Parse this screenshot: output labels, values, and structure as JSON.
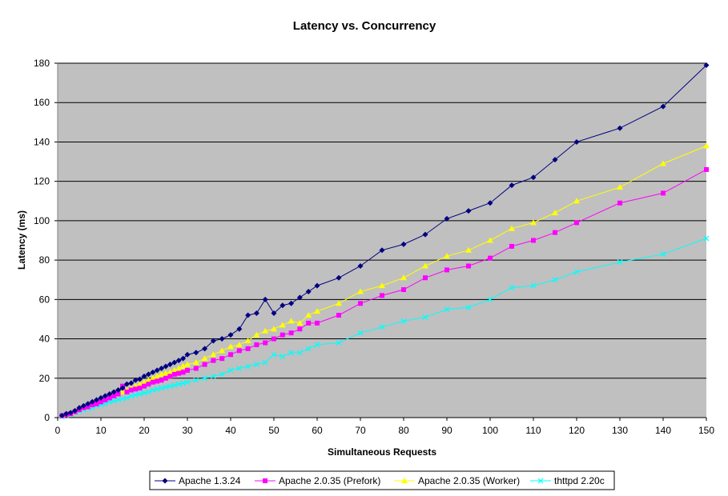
{
  "chart_data": {
    "type": "line",
    "title": "Latency vs. Concurrency",
    "xlabel": "Simultaneous Requests",
    "ylabel": "Latency (ms)",
    "xlim": [
      0,
      150
    ],
    "ylim": [
      0,
      180
    ],
    "xticks": [
      "0",
      "10",
      "20",
      "30",
      "40",
      "50",
      "60",
      "70",
      "80",
      "90",
      "100",
      "110",
      "120",
      "130",
      "140",
      "150"
    ],
    "yticks": [
      "0",
      "20",
      "40",
      "60",
      "80",
      "100",
      "120",
      "140",
      "160",
      "180"
    ],
    "grid": "horizontal",
    "plot_background": "#C0C0C0",
    "legend_position": "bottom",
    "series": [
      {
        "name": "Apache 1.3.24",
        "color": "#000080",
        "marker": "diamond",
        "points": [
          [
            1,
            1
          ],
          [
            2,
            2
          ],
          [
            3,
            2.5
          ],
          [
            4,
            3.5
          ],
          [
            5,
            5
          ],
          [
            6,
            6
          ],
          [
            7,
            7
          ],
          [
            8,
            8
          ],
          [
            9,
            9
          ],
          [
            10,
            10
          ],
          [
            11,
            11
          ],
          [
            12,
            12
          ],
          [
            13,
            13
          ],
          [
            14,
            14
          ],
          [
            15,
            15
          ],
          [
            16,
            17
          ],
          [
            17,
            17.5
          ],
          [
            18,
            19
          ],
          [
            19,
            19.5
          ],
          [
            20,
            21
          ],
          [
            21,
            22
          ],
          [
            22,
            23
          ],
          [
            23,
            24
          ],
          [
            24,
            25
          ],
          [
            25,
            26
          ],
          [
            26,
            27
          ],
          [
            27,
            28
          ],
          [
            28,
            29
          ],
          [
            29,
            30
          ],
          [
            30,
            32
          ],
          [
            32,
            33
          ],
          [
            34,
            35
          ],
          [
            36,
            39
          ],
          [
            38,
            40
          ],
          [
            40,
            42
          ],
          [
            42,
            45
          ],
          [
            44,
            52
          ],
          [
            46,
            53
          ],
          [
            48,
            60
          ],
          [
            50,
            53
          ],
          [
            52,
            57
          ],
          [
            54,
            58
          ],
          [
            56,
            61
          ],
          [
            58,
            64
          ],
          [
            60,
            67
          ],
          [
            65,
            71
          ],
          [
            70,
            77
          ],
          [
            75,
            85
          ],
          [
            80,
            88
          ],
          [
            85,
            93
          ],
          [
            90,
            101
          ],
          [
            95,
            105
          ],
          [
            100,
            109
          ],
          [
            105,
            118
          ],
          [
            110,
            122
          ],
          [
            115,
            131
          ],
          [
            120,
            140
          ],
          [
            130,
            147
          ],
          [
            140,
            158
          ],
          [
            150,
            179
          ]
        ]
      },
      {
        "name": "Apache 2.0.35 (Prefork)",
        "color": "#FF00FF",
        "marker": "square",
        "points": [
          [
            1,
            1
          ],
          [
            2,
            1.5
          ],
          [
            3,
            2
          ],
          [
            4,
            3
          ],
          [
            5,
            4
          ],
          [
            6,
            5
          ],
          [
            7,
            5.5
          ],
          [
            8,
            6.5
          ],
          [
            9,
            7
          ],
          [
            10,
            8
          ],
          [
            11,
            9
          ],
          [
            12,
            10
          ],
          [
            13,
            11
          ],
          [
            14,
            12
          ],
          [
            15,
            16
          ],
          [
            16,
            13
          ],
          [
            17,
            14
          ],
          [
            18,
            14.5
          ],
          [
            19,
            15
          ],
          [
            20,
            16
          ],
          [
            21,
            17
          ],
          [
            22,
            18
          ],
          [
            23,
            18.5
          ],
          [
            24,
            19
          ],
          [
            25,
            20
          ],
          [
            26,
            21
          ],
          [
            27,
            22
          ],
          [
            28,
            22.5
          ],
          [
            29,
            23
          ],
          [
            30,
            24
          ],
          [
            32,
            25
          ],
          [
            34,
            27
          ],
          [
            36,
            29
          ],
          [
            38,
            30
          ],
          [
            40,
            32
          ],
          [
            42,
            34
          ],
          [
            44,
            35
          ],
          [
            46,
            37
          ],
          [
            48,
            38
          ],
          [
            50,
            40
          ],
          [
            52,
            42
          ],
          [
            54,
            43
          ],
          [
            56,
            45
          ],
          [
            58,
            48
          ],
          [
            60,
            48
          ],
          [
            65,
            52
          ],
          [
            70,
            58
          ],
          [
            75,
            62
          ],
          [
            80,
            65
          ],
          [
            85,
            71
          ],
          [
            90,
            75
          ],
          [
            95,
            77
          ],
          [
            100,
            81
          ],
          [
            105,
            87
          ],
          [
            110,
            90
          ],
          [
            115,
            94
          ],
          [
            120,
            99
          ],
          [
            130,
            109
          ],
          [
            140,
            114
          ],
          [
            150,
            126
          ]
        ]
      },
      {
        "name": "Apache 2.0.35 (Worker)",
        "color": "#FFFF00",
        "marker": "triangle",
        "points": [
          [
            1,
            1
          ],
          [
            2,
            1.5
          ],
          [
            3,
            2.5
          ],
          [
            4,
            3.5
          ],
          [
            5,
            4.5
          ],
          [
            6,
            5
          ],
          [
            7,
            6
          ],
          [
            8,
            7
          ],
          [
            9,
            8
          ],
          [
            10,
            9
          ],
          [
            11,
            10
          ],
          [
            12,
            11
          ],
          [
            13,
            12
          ],
          [
            14,
            12.5
          ],
          [
            15,
            13
          ],
          [
            16,
            14
          ],
          [
            17,
            15
          ],
          [
            18,
            16
          ],
          [
            19,
            17
          ],
          [
            20,
            18
          ],
          [
            21,
            19
          ],
          [
            22,
            20
          ],
          [
            23,
            21
          ],
          [
            24,
            22
          ],
          [
            25,
            22.5
          ],
          [
            26,
            23
          ],
          [
            27,
            24
          ],
          [
            28,
            25
          ],
          [
            29,
            26
          ],
          [
            30,
            27
          ],
          [
            32,
            28
          ],
          [
            34,
            30
          ],
          [
            36,
            32
          ],
          [
            38,
            34
          ],
          [
            40,
            36
          ],
          [
            42,
            37
          ],
          [
            44,
            39
          ],
          [
            46,
            42
          ],
          [
            48,
            44
          ],
          [
            50,
            45
          ],
          [
            52,
            47
          ],
          [
            54,
            49
          ],
          [
            56,
            48
          ],
          [
            58,
            52
          ],
          [
            60,
            54
          ],
          [
            65,
            58
          ],
          [
            70,
            64
          ],
          [
            75,
            67
          ],
          [
            80,
            71
          ],
          [
            85,
            77
          ],
          [
            90,
            82
          ],
          [
            95,
            85
          ],
          [
            100,
            90
          ],
          [
            105,
            96
          ],
          [
            110,
            99
          ],
          [
            115,
            104
          ],
          [
            120,
            110
          ],
          [
            130,
            117
          ],
          [
            140,
            129
          ],
          [
            150,
            138
          ]
        ]
      },
      {
        "name": "thttpd 2.20c",
        "color": "#00FFFF",
        "marker": "cross",
        "points": [
          [
            1,
            0.5
          ],
          [
            2,
            1
          ],
          [
            3,
            1.5
          ],
          [
            4,
            2.5
          ],
          [
            5,
            3
          ],
          [
            6,
            4
          ],
          [
            7,
            4.5
          ],
          [
            8,
            5
          ],
          [
            9,
            6
          ],
          [
            10,
            6.5
          ],
          [
            11,
            7
          ],
          [
            12,
            8
          ],
          [
            13,
            8.5
          ],
          [
            14,
            9
          ],
          [
            15,
            9.5
          ],
          [
            16,
            10
          ],
          [
            17,
            11
          ],
          [
            18,
            11.5
          ],
          [
            19,
            12
          ],
          [
            20,
            12.5
          ],
          [
            21,
            13
          ],
          [
            22,
            14
          ],
          [
            23,
            14.5
          ],
          [
            24,
            15
          ],
          [
            25,
            15.5
          ],
          [
            26,
            16
          ],
          [
            27,
            16.5
          ],
          [
            28,
            17
          ],
          [
            29,
            17.5
          ],
          [
            30,
            18
          ],
          [
            32,
            19
          ],
          [
            34,
            20
          ],
          [
            36,
            21
          ],
          [
            38,
            22
          ],
          [
            40,
            24
          ],
          [
            42,
            25
          ],
          [
            44,
            26
          ],
          [
            46,
            27
          ],
          [
            48,
            28
          ],
          [
            50,
            32
          ],
          [
            52,
            31
          ],
          [
            54,
            33
          ],
          [
            56,
            33
          ],
          [
            58,
            35
          ],
          [
            60,
            37
          ],
          [
            65,
            38
          ],
          [
            70,
            43
          ],
          [
            75,
            46
          ],
          [
            80,
            49
          ],
          [
            85,
            51
          ],
          [
            90,
            55
          ],
          [
            95,
            56
          ],
          [
            100,
            60
          ],
          [
            105,
            66
          ],
          [
            110,
            67
          ],
          [
            115,
            70
          ],
          [
            120,
            74
          ],
          [
            130,
            79
          ],
          [
            140,
            83
          ],
          [
            150,
            91
          ]
        ]
      }
    ]
  }
}
